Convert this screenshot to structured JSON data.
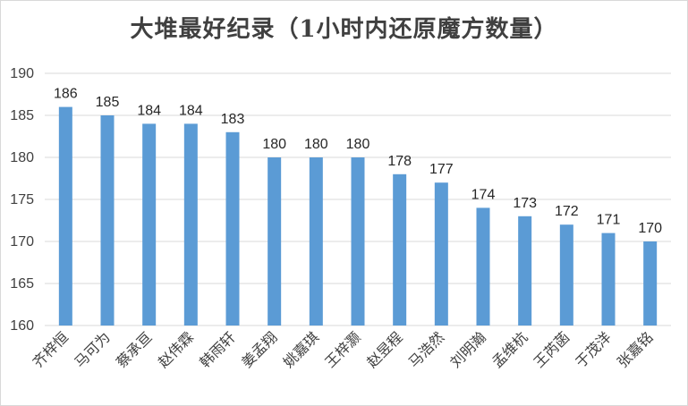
{
  "chart_data": {
    "type": "bar",
    "title": "大堆最好纪录（1小时内还原魔方数量）",
    "xlabel": "",
    "ylabel": "",
    "ylim": [
      160,
      190
    ],
    "yticks": [
      160,
      165,
      170,
      175,
      180,
      185,
      190
    ],
    "grid": true,
    "legend": "none",
    "bar_color": "#5b9bd5",
    "categories": [
      "齐梓恒",
      "马可为",
      "蔡承亘",
      "赵伟霖",
      "韩雨轩",
      "姜孟翔",
      "姚嘉琪",
      "王梓灏",
      "赵昱程",
      "马浩然",
      "刘明瀚",
      "孟维杭",
      "王芮菡",
      "于茂洋",
      "张嘉铭"
    ],
    "values": [
      186,
      185,
      184,
      184,
      183,
      180,
      180,
      180,
      178,
      177,
      174,
      173,
      172,
      171,
      170
    ]
  }
}
